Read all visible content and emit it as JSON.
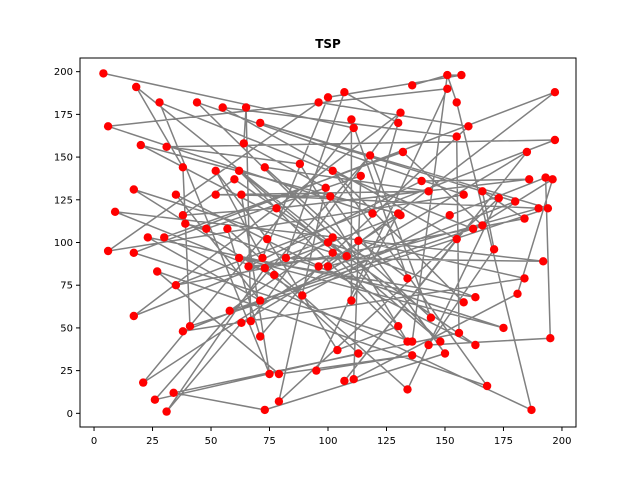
{
  "chart_data": {
    "type": "scatter",
    "title": "TSP",
    "xlabel": "",
    "ylabel": "",
    "xlim": [
      -6,
      206
    ],
    "ylim": [
      -8,
      208
    ],
    "xticks": [
      0,
      25,
      50,
      75,
      100,
      125,
      150,
      175,
      200
    ],
    "yticks": [
      0,
      25,
      50,
      75,
      100,
      125,
      150,
      175,
      200
    ],
    "grid": false,
    "legend": "none",
    "colors": {
      "points": "#ff0000",
      "route": "#808080",
      "axes": "#000000",
      "background": "#ffffff"
    },
    "points": [
      [
        4,
        199
      ],
      [
        151,
        198
      ],
      [
        157,
        198
      ],
      [
        18,
        191
      ],
      [
        136,
        192
      ],
      [
        151,
        190
      ],
      [
        197,
        188
      ],
      [
        55,
        179
      ],
      [
        155,
        182
      ],
      [
        107,
        188
      ],
      [
        28,
        182
      ],
      [
        44,
        182
      ],
      [
        65,
        179
      ],
      [
        96,
        182
      ],
      [
        100,
        185
      ],
      [
        110,
        172
      ],
      [
        131,
        176
      ],
      [
        6,
        168
      ],
      [
        71,
        170
      ],
      [
        111,
        167
      ],
      [
        130,
        170
      ],
      [
        160,
        168
      ],
      [
        155,
        162
      ],
      [
        197,
        160
      ],
      [
        20,
        157
      ],
      [
        64,
        158
      ],
      [
        31,
        156
      ],
      [
        132,
        153
      ],
      [
        185,
        153
      ],
      [
        88,
        146
      ],
      [
        102,
        142
      ],
      [
        38,
        144
      ],
      [
        118,
        151
      ],
      [
        52,
        142
      ],
      [
        62,
        142
      ],
      [
        73,
        144
      ],
      [
        180,
        124
      ],
      [
        186,
        137
      ],
      [
        193,
        138
      ],
      [
        196,
        137
      ],
      [
        140,
        136
      ],
      [
        158,
        128
      ],
      [
        166,
        130
      ],
      [
        60,
        137
      ],
      [
        114,
        139
      ],
      [
        99,
        132
      ],
      [
        17,
        131
      ],
      [
        35,
        128
      ],
      [
        52,
        128
      ],
      [
        63,
        128
      ],
      [
        143,
        130
      ],
      [
        173,
        126
      ],
      [
        101,
        127
      ],
      [
        78,
        120
      ],
      [
        130,
        117
      ],
      [
        152,
        116
      ],
      [
        131,
        116
      ],
      [
        119,
        117
      ],
      [
        190,
        120
      ],
      [
        194,
        120
      ],
      [
        9,
        118
      ],
      [
        38,
        116
      ],
      [
        39,
        111
      ],
      [
        184,
        114
      ],
      [
        166,
        110
      ],
      [
        48,
        108
      ],
      [
        57,
        108
      ],
      [
        162,
        108
      ],
      [
        171,
        96
      ],
      [
        155,
        102
      ],
      [
        102,
        103
      ],
      [
        113,
        101
      ],
      [
        23,
        103
      ],
      [
        30,
        103
      ],
      [
        100,
        100
      ],
      [
        74,
        102
      ],
      [
        6,
        95
      ],
      [
        17,
        94
      ],
      [
        102,
        94
      ],
      [
        192,
        89
      ],
      [
        72,
        91
      ],
      [
        62,
        91
      ],
      [
        66,
        86
      ],
      [
        82,
        91
      ],
      [
        96,
        86
      ],
      [
        73,
        85
      ],
      [
        100,
        86
      ],
      [
        108,
        92
      ],
      [
        27,
        83
      ],
      [
        77,
        81
      ],
      [
        134,
        79
      ],
      [
        184,
        79
      ],
      [
        35,
        75
      ],
      [
        158,
        65
      ],
      [
        163,
        68
      ],
      [
        181,
        70
      ],
      [
        89,
        69
      ],
      [
        110,
        66
      ],
      [
        71,
        66
      ],
      [
        17,
        57
      ],
      [
        58,
        60
      ],
      [
        144,
        56
      ],
      [
        63,
        53
      ],
      [
        67,
        54
      ],
      [
        156,
        47
      ],
      [
        175,
        50
      ],
      [
        130,
        51
      ],
      [
        38,
        48
      ],
      [
        41,
        51
      ],
      [
        195,
        44
      ],
      [
        71,
        45
      ],
      [
        104,
        37
      ],
      [
        113,
        35
      ],
      [
        134,
        42
      ],
      [
        136,
        42
      ],
      [
        143,
        40
      ],
      [
        148,
        42
      ],
      [
        150,
        35
      ],
      [
        163,
        40
      ],
      [
        136,
        34
      ],
      [
        75,
        23
      ],
      [
        79,
        23
      ],
      [
        95,
        25
      ],
      [
        134,
        14
      ],
      [
        107,
        19
      ],
      [
        111,
        20
      ],
      [
        168,
        16
      ],
      [
        21,
        18
      ],
      [
        34,
        12
      ],
      [
        26,
        8
      ],
      [
        79,
        7
      ],
      [
        31,
        1
      ],
      [
        73,
        2
      ],
      [
        187,
        2
      ]
    ],
    "route": [
      4,
      1,
      2,
      14,
      80,
      33,
      75,
      111,
      106,
      78,
      46,
      96,
      55,
      38,
      109,
      115,
      68,
      42,
      136,
      63,
      92,
      23,
      26,
      29,
      113,
      34,
      116,
      11,
      41,
      76,
      13,
      21,
      84,
      110,
      66,
      123,
      51,
      130,
      45,
      25,
      12,
      103,
      16,
      99,
      70,
      100,
      64,
      27,
      73,
      133,
      8,
      1,
      114,
      77,
      135,
      6,
      86,
      58,
      49,
      120,
      10,
      67,
      39,
      95,
      125,
      44,
      65,
      62,
      105,
      81,
      94,
      74,
      24,
      54,
      97,
      15,
      90,
      71,
      91,
      107,
      36,
      18,
      59,
      108,
      31,
      3,
      87,
      82,
      40,
      37,
      53,
      61,
      43,
      118,
      47,
      98,
      72,
      93,
      30,
      126,
      88,
      121,
      119,
      122,
      5,
      17,
      57,
      20,
      9,
      83,
      79,
      60,
      89,
      112,
      129,
      32,
      101,
      35,
      50,
      48,
      52,
      117,
      132,
      134,
      128,
      104,
      22,
      7,
      69,
      124,
      28,
      102,
      131,
      85,
      56,
      127,
      19,
      0
    ]
  }
}
